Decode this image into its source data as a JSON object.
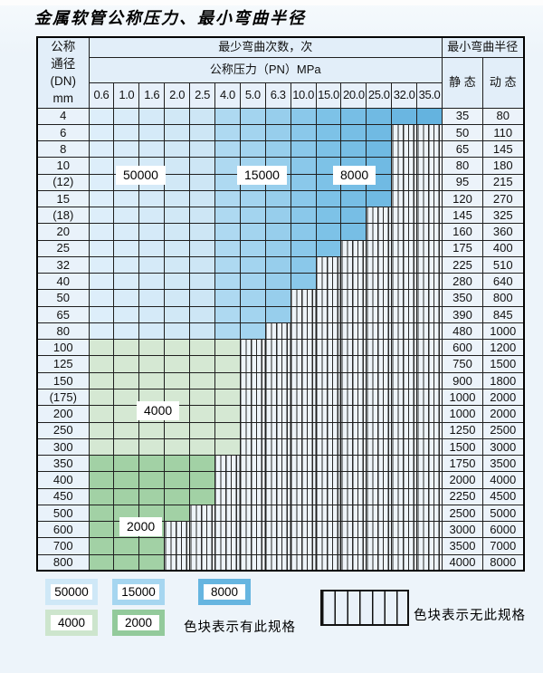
{
  "title": "金属软管公称压力、最小弯曲半径",
  "table": {
    "corner_lines": [
      "公称",
      "通径",
      "(DN)",
      "mm"
    ],
    "bend_cycles_header": "最少弯曲次数，次",
    "pressure_header": "公称压力（PN）MPa",
    "radius_header": "最小弯曲半径",
    "static_header": "静 态",
    "dynamic_header": "动 态",
    "pressure_columns": [
      "0.6",
      "1.0",
      "1.6",
      "2.0",
      "2.5",
      "4.0",
      "5.0",
      "6.3",
      "10.0",
      "15.0",
      "20.0",
      "25.0",
      "32.0",
      "35.0"
    ],
    "rows": [
      {
        "dn": "4",
        "colored_cols": 14,
        "zone": "blue",
        "static": "35",
        "dynamic": "80"
      },
      {
        "dn": "6",
        "colored_cols": 12,
        "zone": "blue",
        "static": "50",
        "dynamic": "110"
      },
      {
        "dn": "8",
        "colored_cols": 12,
        "zone": "blue",
        "static": "65",
        "dynamic": "145"
      },
      {
        "dn": "10",
        "colored_cols": 12,
        "zone": "blue",
        "static": "80",
        "dynamic": "180"
      },
      {
        "dn": "(12)",
        "colored_cols": 12,
        "zone": "blue",
        "static": "95",
        "dynamic": "215"
      },
      {
        "dn": "15",
        "colored_cols": 12,
        "zone": "blue",
        "static": "120",
        "dynamic": "270"
      },
      {
        "dn": "(18)",
        "colored_cols": 11,
        "zone": "blue",
        "static": "145",
        "dynamic": "325"
      },
      {
        "dn": "20",
        "colored_cols": 11,
        "zone": "blue",
        "static": "160",
        "dynamic": "360"
      },
      {
        "dn": "25",
        "colored_cols": 10,
        "zone": "blue",
        "static": "175",
        "dynamic": "400"
      },
      {
        "dn": "32",
        "colored_cols": 9,
        "zone": "blue",
        "static": "225",
        "dynamic": "510"
      },
      {
        "dn": "40",
        "colored_cols": 9,
        "zone": "blue",
        "static": "280",
        "dynamic": "640"
      },
      {
        "dn": "50",
        "colored_cols": 8,
        "zone": "blue",
        "static": "350",
        "dynamic": "800"
      },
      {
        "dn": "65",
        "colored_cols": 8,
        "zone": "blue",
        "static": "390",
        "dynamic": "845"
      },
      {
        "dn": "80",
        "colored_cols": 7,
        "zone": "blue",
        "static": "480",
        "dynamic": "1000"
      },
      {
        "dn": "100",
        "colored_cols": 6,
        "zone": "green-light",
        "static": "600",
        "dynamic": "1200"
      },
      {
        "dn": "125",
        "colored_cols": 6,
        "zone": "green-light",
        "static": "750",
        "dynamic": "1500"
      },
      {
        "dn": "150",
        "colored_cols": 6,
        "zone": "green-light",
        "static": "900",
        "dynamic": "1800"
      },
      {
        "dn": "(175)",
        "colored_cols": 6,
        "zone": "green-light",
        "static": "1000",
        "dynamic": "2000"
      },
      {
        "dn": "200",
        "colored_cols": 6,
        "zone": "green-light",
        "static": "1000",
        "dynamic": "2000"
      },
      {
        "dn": "250",
        "colored_cols": 6,
        "zone": "green-light",
        "static": "1250",
        "dynamic": "2500"
      },
      {
        "dn": "300",
        "colored_cols": 6,
        "zone": "green-light",
        "static": "1500",
        "dynamic": "3000"
      },
      {
        "dn": "350",
        "colored_cols": 5,
        "zone": "green-dark",
        "static": "1750",
        "dynamic": "3500"
      },
      {
        "dn": "400",
        "colored_cols": 5,
        "zone": "green-dark",
        "static": "2000",
        "dynamic": "4000"
      },
      {
        "dn": "450",
        "colored_cols": 5,
        "zone": "green-dark",
        "static": "2250",
        "dynamic": "4500"
      },
      {
        "dn": "500",
        "colored_cols": 4,
        "zone": "green-dark",
        "static": "2500",
        "dynamic": "5000"
      },
      {
        "dn": "600",
        "colored_cols": 3,
        "zone": "green-dark",
        "static": "3000",
        "dynamic": "6000"
      },
      {
        "dn": "700",
        "colored_cols": 3,
        "zone": "green-dark",
        "static": "3500",
        "dynamic": "7000"
      },
      {
        "dn": "800",
        "colored_cols": 3,
        "zone": "green-dark",
        "static": "4000",
        "dynamic": "8000"
      }
    ],
    "region_labels": {
      "blue_light": "50000",
      "blue_mid": "15000",
      "blue_dark": "8000",
      "green_light": "4000",
      "green_dark": "2000"
    }
  },
  "legend": {
    "swatches": [
      {
        "label": "50000",
        "color": "#cfe8f7"
      },
      {
        "label": "15000",
        "color": "#a6d6f0"
      },
      {
        "label": "8000",
        "color": "#66b5e0"
      },
      {
        "label": "4000",
        "color": "#cde5cd"
      },
      {
        "label": "2000",
        "color": "#93ca9b"
      }
    ],
    "has_spec_text": "色块表示有此规格",
    "no_spec_text": "色块表示无此规格"
  },
  "colors": {
    "blue_shades": [
      "#ddeefa",
      "#d9ecf9",
      "#d5eaf8",
      "#d1e8f6",
      "#cde6f5",
      "#aed9f1",
      "#a3d4ef",
      "#97ceec",
      "#8ac8ea",
      "#7dc2e7",
      "#77bee5",
      "#70bae3",
      "#6ab6e1",
      "#64b3df"
    ],
    "green_light": "#d5e8d3",
    "green_dark": "#a2d1a5"
  }
}
